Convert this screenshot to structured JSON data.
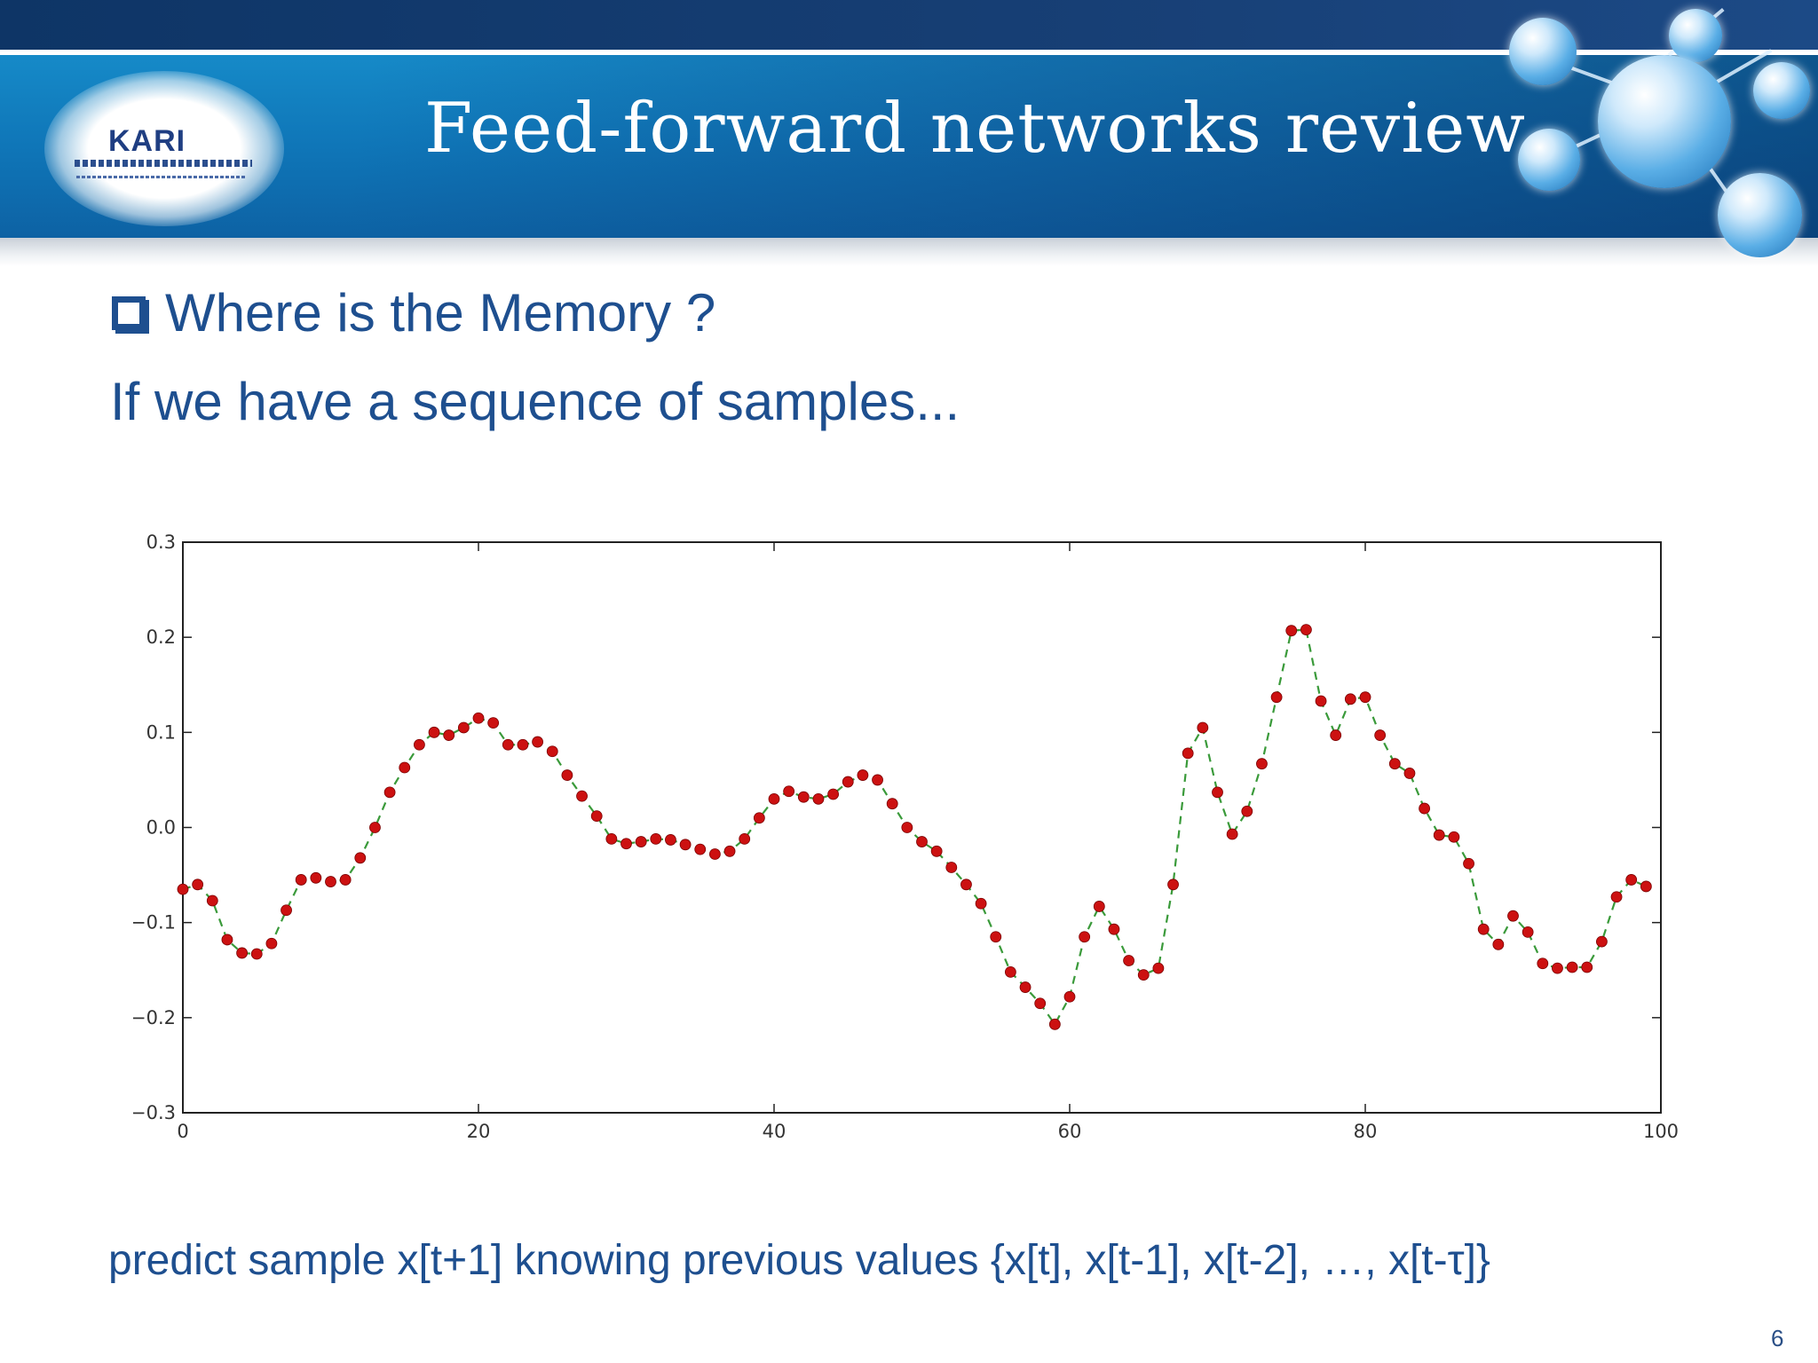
{
  "slide": {
    "title": "Feed-forward networks review",
    "logo_text": "KARI",
    "bullet": "Where is the Memory ?",
    "subtitle": "If we have a sequence of samples...",
    "footer": "predict sample x[t+1] knowing previous values {x[t], x[t-1], x[t-2], …, x[t-τ]}",
    "page_number": "6"
  },
  "colors": {
    "header_band": "#0f76b8",
    "text_blue": "#1e4f8f",
    "marker": "#cc1111",
    "line": "#3a9a3a"
  },
  "chart_data": {
    "type": "line",
    "title": "",
    "xlabel": "",
    "ylabel": "",
    "xlim": [
      0,
      100
    ],
    "ylim": [
      -0.3,
      0.3
    ],
    "xticks": [
      "0",
      "20",
      "40",
      "60",
      "80",
      "100"
    ],
    "yticks": [
      "0.3",
      "0.2",
      "0.1",
      "0.0",
      "−0.1",
      "−0.2",
      "−0.3"
    ],
    "grid": false,
    "legend": "none",
    "line_style": "dashed",
    "marker": "circle",
    "series": [
      {
        "x": [
          0,
          1,
          2,
          3,
          4,
          5,
          6,
          7,
          8,
          9,
          10,
          11,
          12,
          13,
          14,
          15,
          16,
          17,
          18,
          19,
          20,
          21,
          22,
          23,
          24,
          25,
          26,
          27,
          28,
          29,
          30,
          31,
          32,
          33,
          34,
          35,
          36,
          37,
          38,
          39,
          40,
          41,
          42,
          43,
          44,
          45,
          46,
          47,
          48,
          49,
          50,
          51,
          52,
          53,
          54,
          55,
          56,
          57,
          58,
          59,
          60,
          61,
          62,
          63,
          64,
          65,
          66,
          67,
          68,
          69,
          70,
          71,
          72,
          73,
          74,
          75,
          76,
          77,
          78,
          79,
          80,
          81,
          82,
          83,
          84,
          85,
          86,
          87,
          88,
          89,
          90,
          91,
          92,
          93,
          94,
          95,
          96,
          97,
          98,
          99
        ],
        "values": [
          -0.065,
          -0.06,
          -0.077,
          -0.118,
          -0.132,
          -0.133,
          -0.122,
          -0.087,
          -0.055,
          -0.053,
          -0.057,
          -0.055,
          -0.032,
          0.0,
          0.037,
          0.063,
          0.087,
          0.1,
          0.097,
          0.105,
          0.115,
          0.11,
          0.087,
          0.087,
          0.09,
          0.08,
          0.055,
          0.033,
          0.012,
          -0.012,
          -0.017,
          -0.015,
          -0.012,
          -0.013,
          -0.018,
          -0.023,
          -0.028,
          -0.025,
          -0.012,
          0.01,
          0.03,
          0.038,
          0.032,
          0.03,
          0.035,
          0.048,
          0.055,
          0.05,
          0.025,
          0.0,
          -0.015,
          -0.025,
          -0.042,
          -0.06,
          -0.08,
          -0.115,
          -0.152,
          -0.168,
          -0.185,
          -0.207,
          -0.178,
          -0.115,
          -0.083,
          -0.107,
          -0.14,
          -0.155,
          -0.148,
          -0.06,
          0.078,
          0.105,
          0.037,
          -0.007,
          0.017,
          0.067,
          0.137,
          0.207,
          0.208,
          0.133,
          0.097,
          0.135,
          0.137,
          0.097,
          0.067,
          0.057,
          0.02,
          -0.008,
          -0.01,
          -0.038,
          -0.107,
          -0.123,
          -0.093,
          -0.11,
          -0.143,
          -0.148,
          -0.147,
          -0.147,
          -0.12,
          -0.073,
          -0.055,
          -0.062
        ]
      }
    ]
  }
}
